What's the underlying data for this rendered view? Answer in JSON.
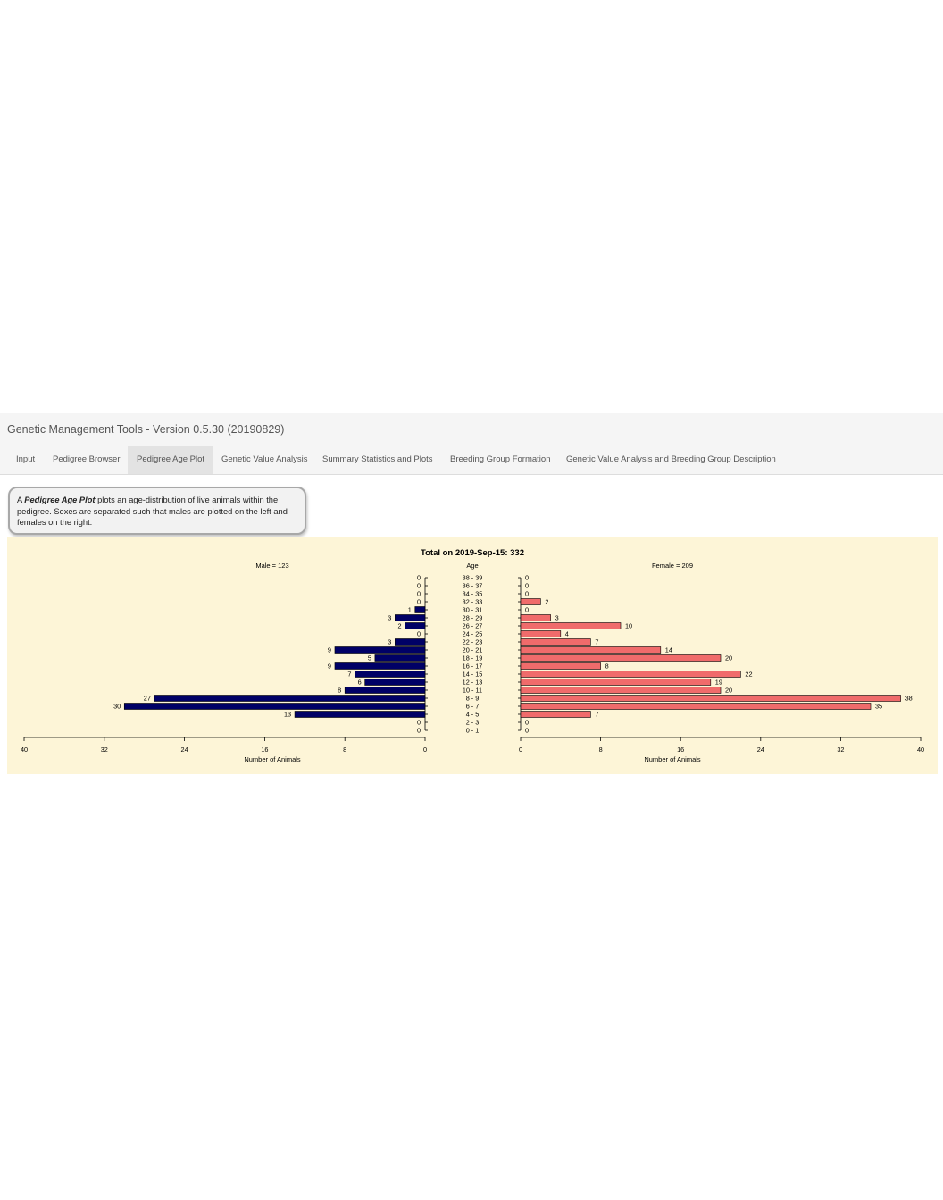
{
  "app": {
    "title": "Genetic Management Tools - Version 0.5.30 (20190829)"
  },
  "tabs": [
    {
      "label": "Input",
      "active": false
    },
    {
      "label": "Pedigree Browser",
      "active": false
    },
    {
      "label": "Pedigree Age Plot",
      "active": true
    },
    {
      "label": "Genetic Value Analysis",
      "active": false
    },
    {
      "label": "Summary Statistics and Plots",
      "active": false
    },
    {
      "label": "Breeding Group Formation",
      "active": false
    },
    {
      "label": "Genetic Value Analysis and Breeding Group Description",
      "active": false
    }
  ],
  "info": {
    "prefix": "A ",
    "bold": "Pedigree Age Plot",
    "text": " plots an age-distribution of live animals within the pedigree. Sexes are separated such that males are plotted on the left and females on the right."
  },
  "colors": {
    "male": "#000066",
    "female": "#f06b6b",
    "panel": "#fdf5d7"
  },
  "chart_data": {
    "type": "bar",
    "orientation": "horizontal",
    "title": "Total on 2019-Sep-15: 332",
    "center_label": "Age",
    "categories": [
      "38 - 39",
      "36 - 37",
      "34 - 35",
      "32 - 33",
      "30 - 31",
      "28 - 29",
      "26 - 27",
      "24 - 25",
      "22 - 23",
      "20 - 21",
      "18 - 19",
      "16 - 17",
      "14 - 15",
      "12 - 13",
      "10 - 11",
      "8 - 9",
      "6 - 7",
      "4 - 5",
      "2 - 3",
      "0 - 1"
    ],
    "series": [
      {
        "name": "Male = 123",
        "side": "left",
        "values": [
          0,
          0,
          0,
          0,
          1,
          3,
          2,
          0,
          3,
          9,
          5,
          9,
          7,
          6,
          8,
          27,
          30,
          13,
          0,
          0
        ]
      },
      {
        "name": "Female = 209",
        "side": "right",
        "values": [
          0,
          0,
          0,
          2,
          0,
          3,
          10,
          4,
          7,
          14,
          20,
          8,
          22,
          19,
          20,
          38,
          35,
          7,
          0,
          0
        ]
      }
    ],
    "xlabel": "Number of Animals",
    "xlim": [
      0,
      40
    ],
    "xticks": [
      0,
      8,
      16,
      24,
      32,
      40
    ],
    "grid": false
  }
}
